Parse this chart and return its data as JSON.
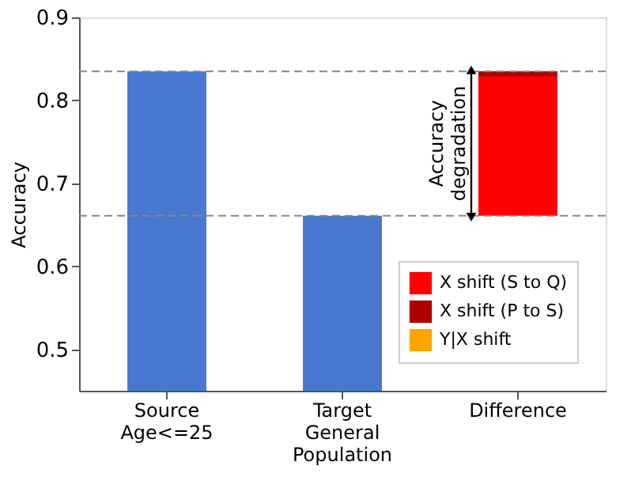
{
  "chart_data": {
    "type": "bar",
    "categories": [
      "Source Age<=25",
      "Target General Population",
      "Difference"
    ],
    "ylabel": "Accuracy",
    "ylim": [
      0.45,
      0.9
    ],
    "yticks": [
      0.5,
      0.6,
      0.7,
      0.8,
      0.9
    ],
    "series": [
      {
        "color": "#4878d0",
        "values": [
          0.835,
          0.661,
          null
        ]
      },
      {
        "name": "X shift (S to Q)",
        "color": "#ff0000",
        "base": [
          null,
          null,
          0.661
        ],
        "values": [
          null,
          null,
          0.174
        ]
      },
      {
        "name": "X shift (P to S)",
        "color": "#b00000",
        "base": [
          null,
          null,
          0.829
        ],
        "values": [
          null,
          null,
          0.006
        ]
      },
      {
        "name": "Y|X shift",
        "color": "#ffa500",
        "values": [
          null,
          null,
          null
        ]
      }
    ],
    "ref_lines": [
      {
        "axis": "y",
        "value": 0.835,
        "color": "#888888",
        "line_style": "dashed"
      },
      {
        "axis": "y",
        "value": 0.661,
        "color": "#888888",
        "line_style": "dashed"
      }
    ],
    "annotations": [
      "Accuracy degradation"
    ],
    "grid": false,
    "legend": "bottom right"
  }
}
